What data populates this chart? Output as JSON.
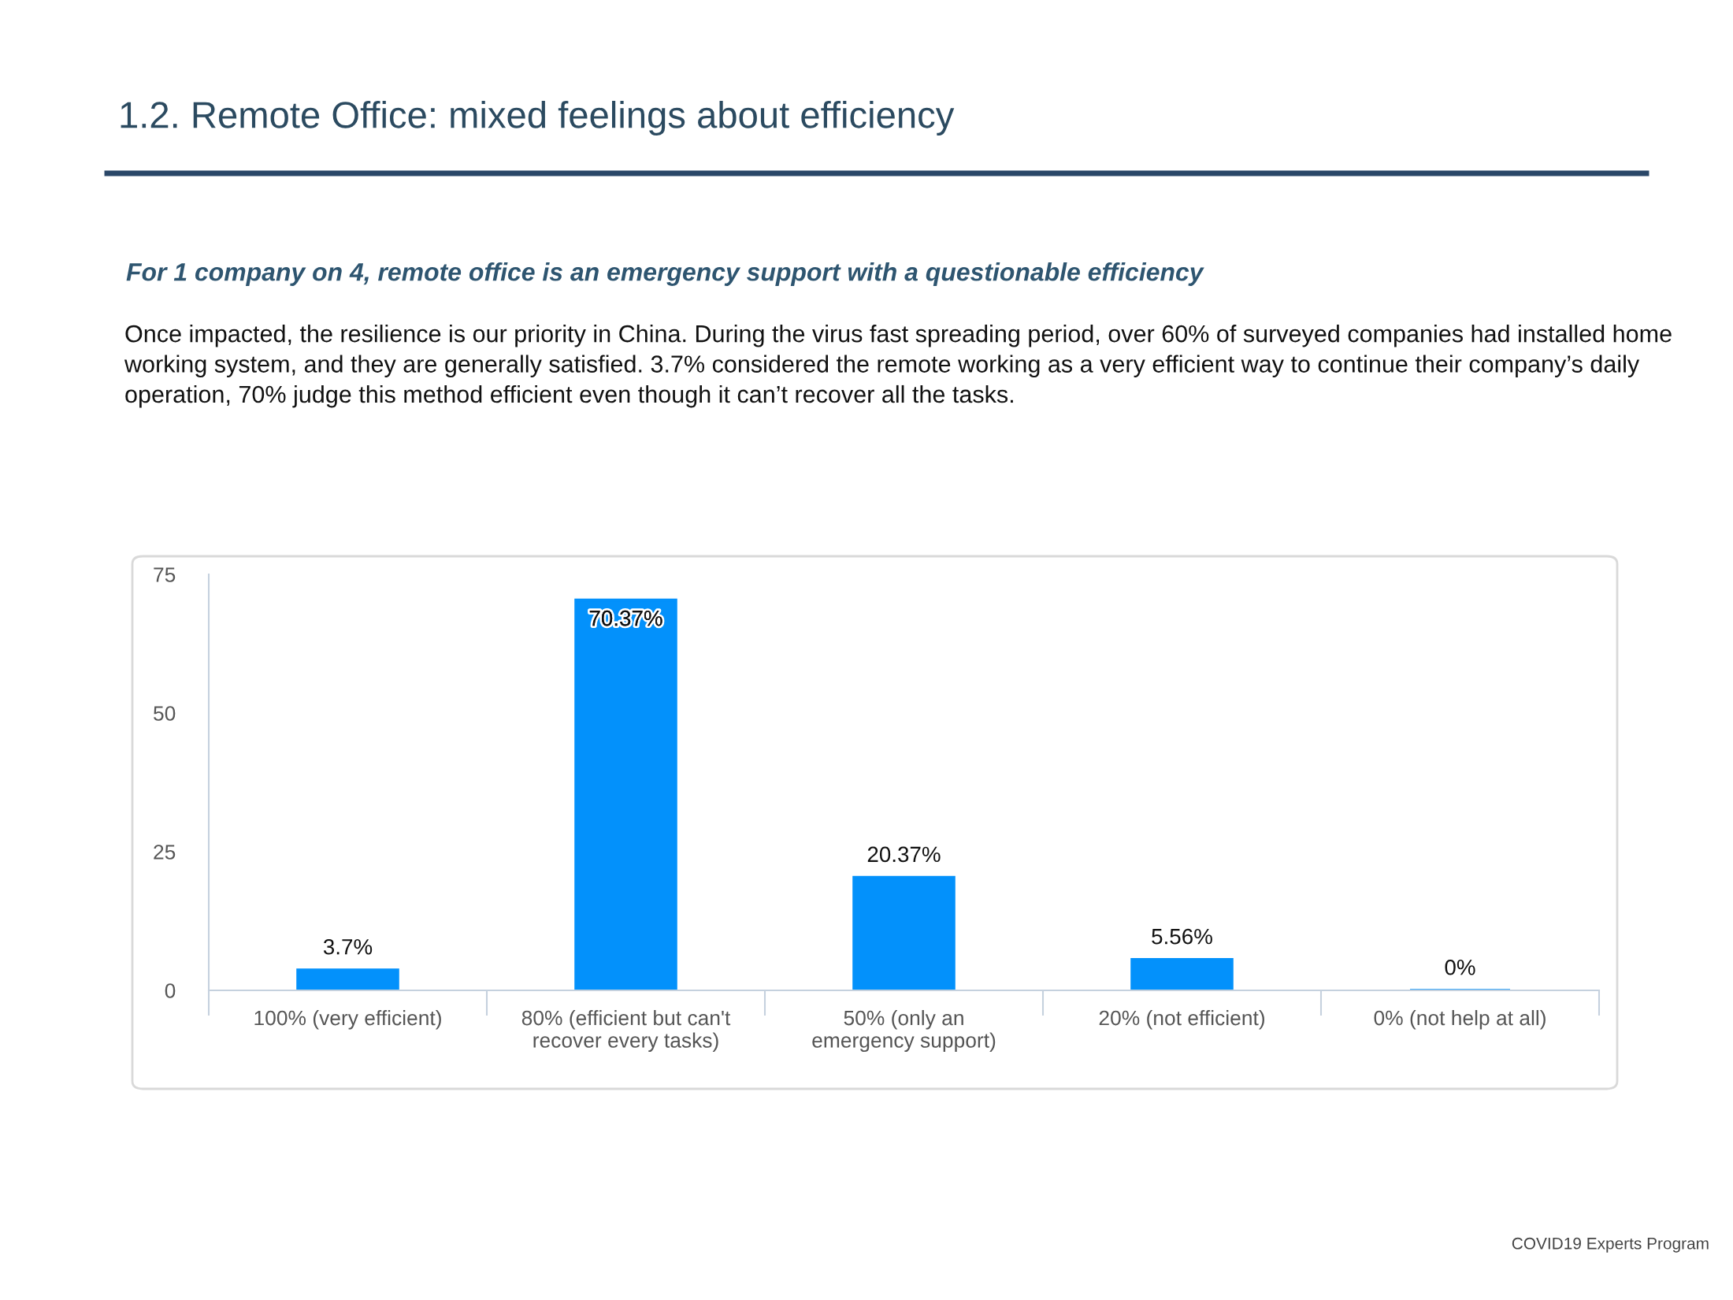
{
  "chart_data": {
    "type": "bar",
    "title": "1.2. Remote Office: mixed feelings about efficiency",
    "subtitle": "For 1 company on 4, remote office is an emergency support with a questionable efficiency",
    "annotations": [
      "Once impacted, the resilience is our priority in China. During the virus fast spreading period, over 60% of surveyed companies had installed home working system, and they are generally satisfied. 3.7% considered the remote working as a very efficient way to continue their company’s daily operation, 70% judge this method efficient even though it can’t recover all the tasks.",
      "COVID19 Experts Program"
    ],
    "categories": [
      "100% (very efficient)",
      "80% (efficient but can't\nrecover every tasks)",
      "50% (only an\nemergency support)",
      "20% (not efficient)",
      "0% (not help at all)"
    ],
    "values": [
      3.7,
      70.37,
      20.37,
      5.56,
      0
    ],
    "value_labels": [
      "3.7%",
      "70.37%",
      "20.37%",
      "5.56%",
      "0%"
    ],
    "color": "#0391fb",
    "ylim": [
      0,
      75
    ],
    "yticks": [
      0,
      25,
      50,
      75
    ],
    "grid": false
  }
}
